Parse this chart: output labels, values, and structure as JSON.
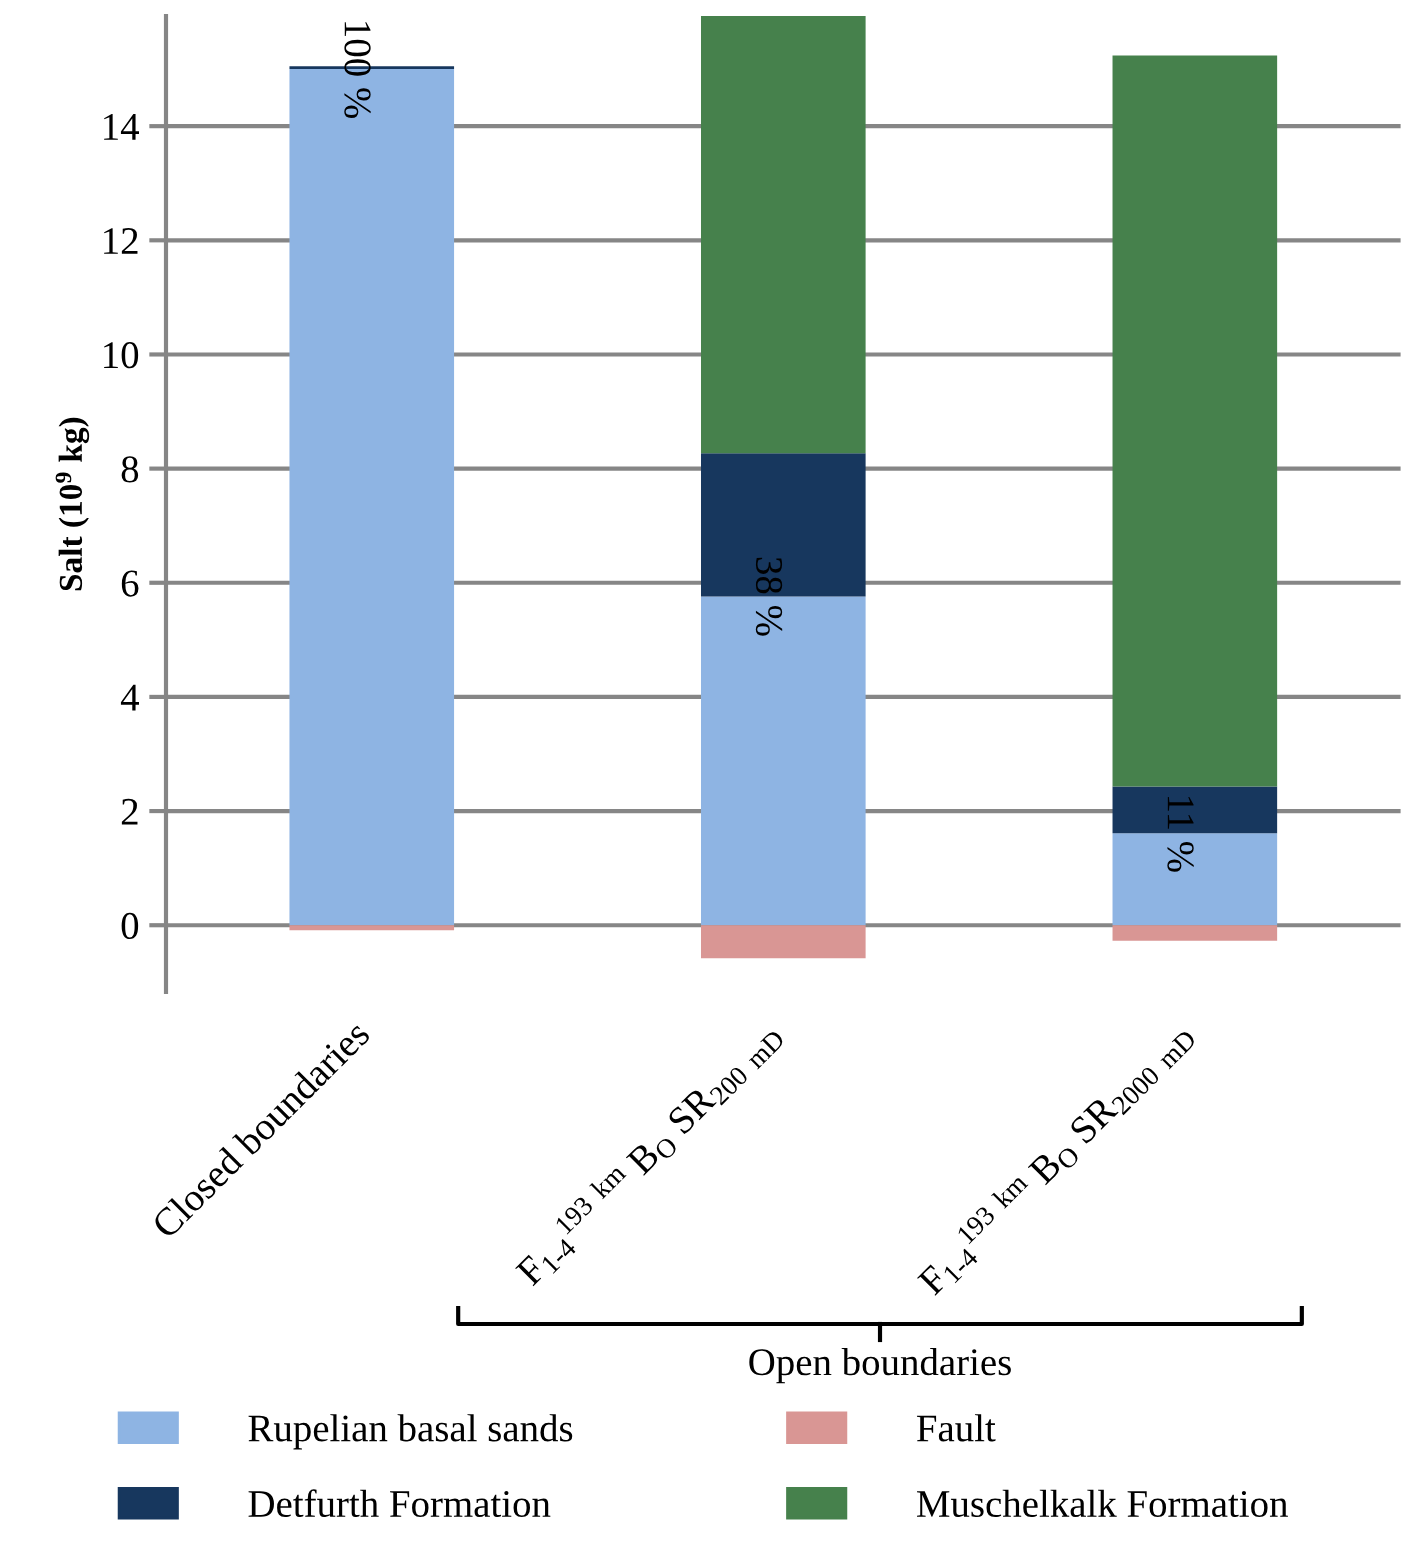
{
  "chart_data": {
    "type": "bar",
    "stacked": true,
    "ylabel": "Salt (10$^{9}$ kg)",
    "categories": [
      "Closed boundaries",
      "F$_{1-4}$$^{193}$ $^{km}$ B$_{O}$ SR$_{200}$ $_{mD}$",
      "F$_{1-4}$$^{193}$ $^{km}$ B$_{O}$ SR$_{2000}$ $_{mD}$"
    ],
    "series": [
      {
        "name": "Rupelian basal sands",
        "color": "#8eb4e3",
        "values": [
          15.0,
          5.76,
          1.61
        ]
      },
      {
        "name": "Fault",
        "color": "#d99694",
        "values": [
          -0.09,
          -0.58,
          -0.27
        ]
      },
      {
        "name": "Detfurth Formation",
        "color": "#17375e",
        "values": [
          0.05,
          2.51,
          0.82
        ]
      },
      {
        "name": "Muschelkalk Formation",
        "color": "#46814c",
        "values": [
          0,
          7.66,
          12.81
        ]
      }
    ],
    "ylim": [
      -1.17,
      15.93
    ],
    "yticks": [
      0,
      2,
      4,
      6,
      8,
      10,
      12,
      14
    ],
    "grid": "y",
    "legend": "bottom",
    "annotations": [
      "Open boundaries",
      {
        "text": "100 %",
        "x": "Closed boundaries",
        "y": 15.0
      },
      {
        "text": "38 %",
        "x": "F$_{1-4}$$^{193}$ $^{km}$ B$_{O}$ SR$_{200}$ $_{mD}$",
        "y": 5.76
      },
      {
        "text": "11 %",
        "x": "F$_{1-4}$$^{193}$ $^{km}$ B$_{O}$ SR$_{2000}$ $_{mD}$",
        "y": 1.61
      }
    ]
  }
}
